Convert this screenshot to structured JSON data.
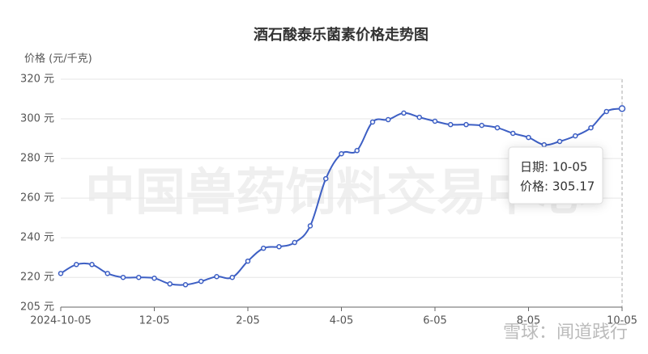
{
  "chart_data": {
    "type": "line",
    "title": "酒石酸泰乐菌素价格走势图",
    "y_axis_label": "价格 (元/千克)",
    "categories": [
      "2024-10-05",
      null,
      null,
      null,
      null,
      null,
      "12-05",
      null,
      null,
      null,
      null,
      null,
      "2-05",
      null,
      null,
      null,
      null,
      null,
      "4-05",
      null,
      null,
      null,
      null,
      null,
      "6-05",
      null,
      null,
      null,
      null,
      null,
      "8-05",
      null,
      null,
      null,
      null,
      null,
      "10-05"
    ],
    "series": [
      {
        "name": "价格",
        "color": "#3d5fc4",
        "values": [
          222,
          226.5,
          226.5,
          222,
          220,
          220,
          219.6,
          216.7,
          216.3,
          218,
          220.4,
          220,
          228.2,
          234.7,
          235.5,
          237.6,
          246,
          269.8,
          282.4,
          284,
          298.4,
          299.6,
          302.9,
          300.8,
          298.8,
          297.1,
          297.1,
          296.7,
          295.5,
          292.7,
          290.6,
          286.9,
          288.6,
          291.4,
          295.5,
          303.7,
          305.17
        ]
      }
    ],
    "ylim": [
      205,
      320
    ],
    "yticks": [
      {
        "value": 205,
        "label": "205 元"
      },
      {
        "value": 220,
        "label": "220 元"
      },
      {
        "value": 240,
        "label": "240 元"
      },
      {
        "value": 260,
        "label": "260 元"
      },
      {
        "value": 280,
        "label": "280 元"
      },
      {
        "value": 300,
        "label": "300 元"
      },
      {
        "value": 320,
        "label": "320 元"
      }
    ],
    "grid": true,
    "tooltip": {
      "date": "日期: 10-05",
      "price": "价格: 305.17"
    },
    "watermark": "中国兽药饲料交易中心",
    "source_watermark": "雪球：闻道践行"
  }
}
